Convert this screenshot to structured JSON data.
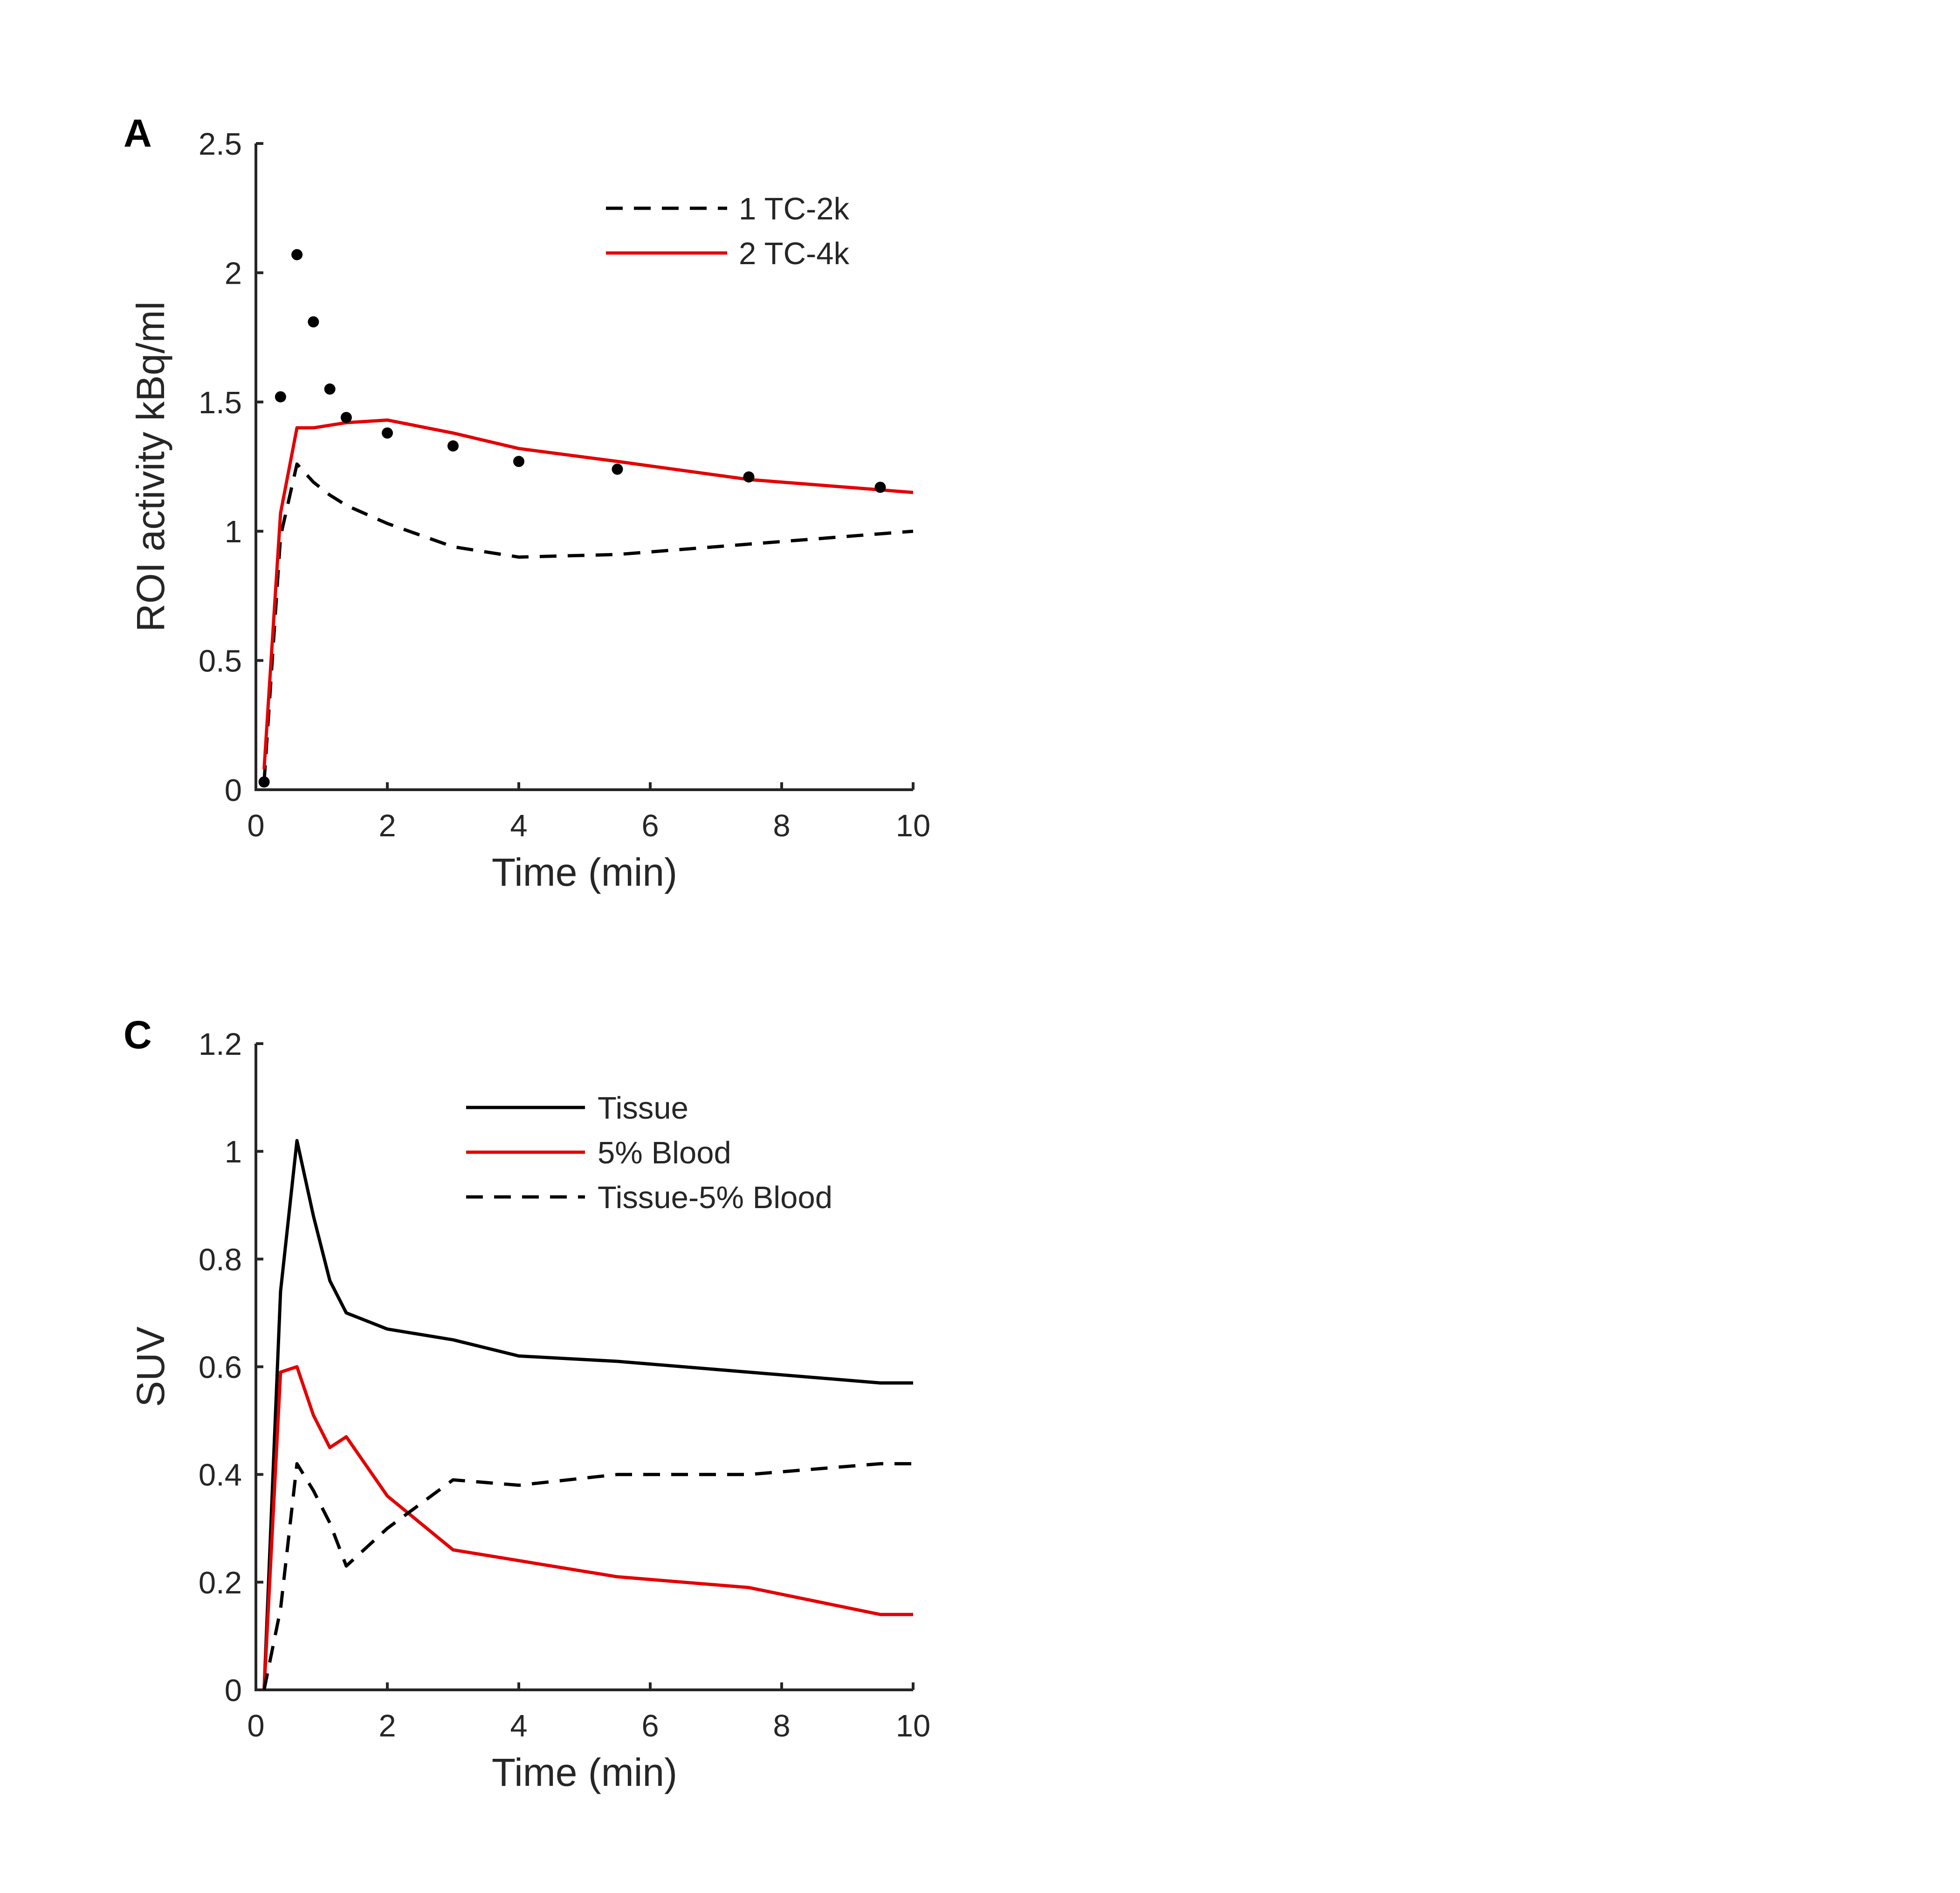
{
  "chart_data": [
    {
      "type": "line",
      "panel_label": "A",
      "xlabel": "Time (min)",
      "ylabel": "ROI activity kBq/ml",
      "xlim": [
        0,
        10
      ],
      "ylim": [
        0,
        2.5
      ],
      "xticks": [
        0,
        2,
        4,
        6,
        8,
        10
      ],
      "xtick_labels": [
        "0",
        "2",
        "4",
        "6",
        "8",
        "10"
      ],
      "yticks": [
        0,
        0.5,
        1,
        1.5,
        2,
        2.5
      ],
      "ytick_labels": [
        "0",
        "0.5",
        "1",
        "1.5",
        "2",
        "2.5"
      ],
      "grid": false,
      "legend_position": "top-right",
      "series": [
        {
          "name": "1 TC-2k",
          "color": "#000000",
          "style": "dashed",
          "x": [
            0.125,
            0.375,
            0.625,
            0.875,
            1.125,
            1.375,
            2,
            3,
            4,
            5.5,
            7.5,
            9.5,
            10
          ],
          "y": [
            0.03,
            0.98,
            1.26,
            1.19,
            1.14,
            1.1,
            1.03,
            0.94,
            0.9,
            0.91,
            0.95,
            0.99,
            1.0
          ]
        },
        {
          "name": "2 TC-4k",
          "color": "#e30000",
          "style": "solid",
          "x": [
            0.125,
            0.375,
            0.625,
            0.875,
            1.125,
            1.375,
            2,
            3,
            4,
            5.5,
            7.5,
            9.5,
            10
          ],
          "y": [
            0.08,
            1.07,
            1.4,
            1.4,
            1.41,
            1.42,
            1.43,
            1.38,
            1.32,
            1.27,
            1.2,
            1.16,
            1.15
          ]
        },
        {
          "name": "",
          "color": "#000000",
          "style": "markers",
          "x": [
            0.125,
            0.375,
            0.625,
            0.875,
            1.125,
            1.375,
            2,
            3,
            4,
            5.5,
            7.5,
            9.5
          ],
          "y": [
            0.03,
            1.52,
            2.07,
            1.81,
            1.55,
            1.44,
            1.38,
            1.33,
            1.27,
            1.24,
            1.21,
            1.17
          ]
        }
      ]
    },
    {
      "type": "line",
      "panel_label": "C",
      "xlabel": "Time (min)",
      "ylabel": "SUV",
      "xlim": [
        0,
        10
      ],
      "ylim": [
        0,
        1.2
      ],
      "xticks": [
        0,
        2,
        4,
        6,
        8,
        10
      ],
      "xtick_labels": [
        "0",
        "2",
        "4",
        "6",
        "8",
        "10"
      ],
      "yticks": [
        0,
        0.2,
        0.4,
        0.6,
        0.8,
        1,
        1.2
      ],
      "ytick_labels": [
        "0",
        "0.2",
        "0.4",
        "0.6",
        "0.8",
        "1",
        "1.2"
      ],
      "grid": false,
      "legend_position": "top-right",
      "series": [
        {
          "name": "Tissue",
          "color": "#000000",
          "style": "solid",
          "x": [
            0.125,
            0.375,
            0.625,
            0.875,
            1.125,
            1.375,
            2,
            3,
            4,
            5.5,
            7.5,
            9.5,
            10
          ],
          "y": [
            0.0,
            0.74,
            1.02,
            0.88,
            0.76,
            0.7,
            0.67,
            0.65,
            0.62,
            0.61,
            0.59,
            0.57,
            0.57
          ]
        },
        {
          "name": "5% Blood",
          "color": "#e30000",
          "style": "solid",
          "x": [
            0.125,
            0.375,
            0.625,
            0.875,
            1.125,
            1.375,
            2,
            3,
            4,
            5.5,
            7.5,
            9.5,
            10
          ],
          "y": [
            0.0,
            0.59,
            0.6,
            0.51,
            0.45,
            0.47,
            0.36,
            0.26,
            0.24,
            0.21,
            0.19,
            0.14,
            0.14
          ]
        },
        {
          "name": "Tissue-5% Blood",
          "color": "#000000",
          "style": "dashed",
          "x": [
            0.125,
            0.375,
            0.625,
            0.875,
            1.125,
            1.375,
            2,
            3,
            4,
            5.5,
            7.5,
            9.5,
            10
          ],
          "y": [
            0.0,
            0.15,
            0.42,
            0.37,
            0.31,
            0.23,
            0.3,
            0.39,
            0.38,
            0.4,
            0.4,
            0.42,
            0.42
          ]
        }
      ]
    }
  ]
}
